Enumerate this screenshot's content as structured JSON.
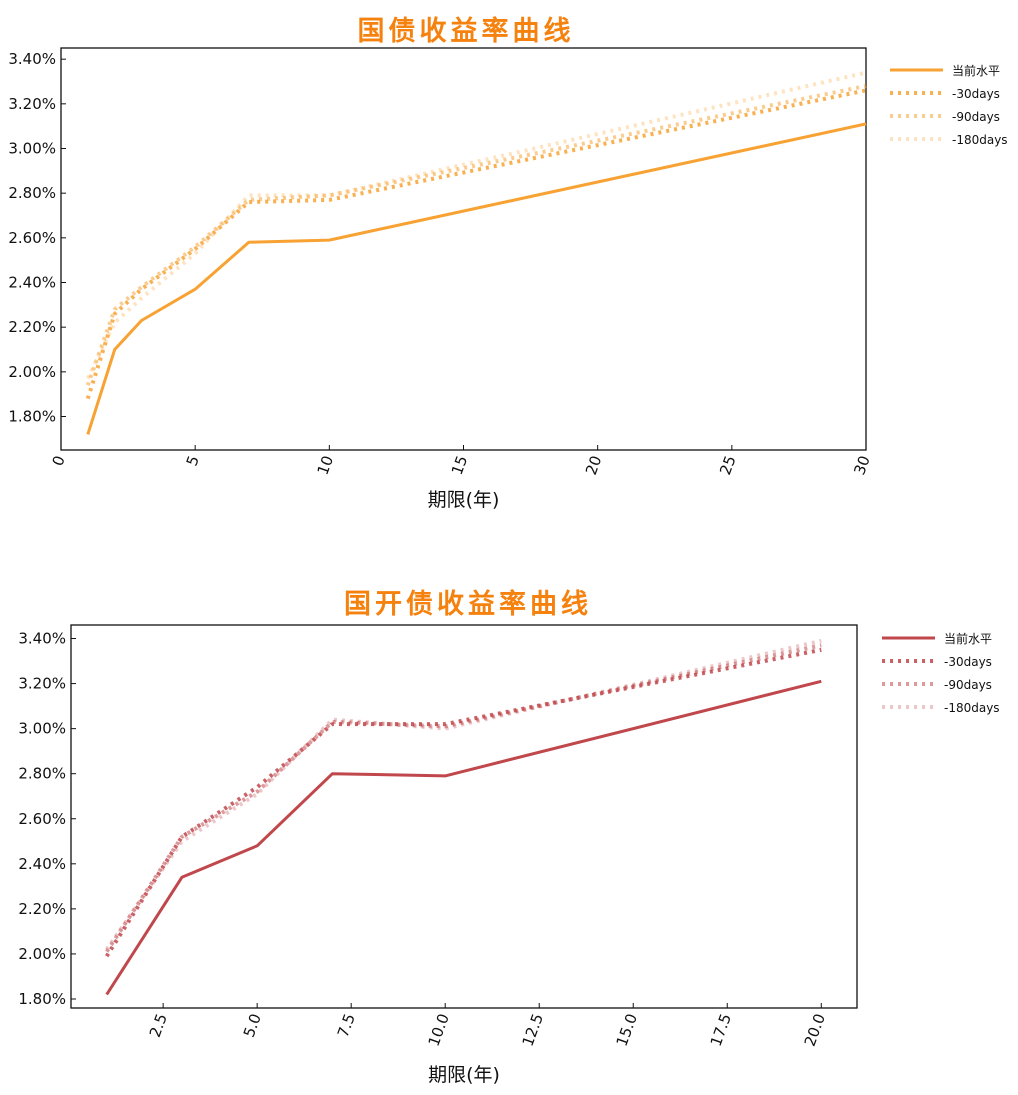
{
  "colors": {
    "chart1": "#f7a233",
    "chart2": "#c0474b",
    "title": "#f5820e"
  },
  "chart_data": [
    {
      "type": "line",
      "title": "国债收益率曲线",
      "xlabel": "期限(年)",
      "ylabel": "",
      "xlim": [
        0,
        30
      ],
      "ylim": [
        1.65,
        3.45
      ],
      "x_ticks": [
        "0",
        "5",
        "10",
        "15",
        "20",
        "25",
        "30"
      ],
      "y_ticks": [
        "1.80%",
        "2.00%",
        "2.20%",
        "2.40%",
        "2.60%",
        "2.80%",
        "3.00%",
        "3.20%",
        "3.40%"
      ],
      "legend_position": "outside-right",
      "grid": false,
      "series": [
        {
          "name": "当前水平",
          "x": [
            1,
            2,
            3,
            5,
            7,
            10,
            30
          ],
          "values": [
            1.72,
            2.1,
            2.23,
            2.37,
            2.58,
            2.59,
            3.11
          ]
        },
        {
          "name": "-30days",
          "x": [
            1,
            2,
            3,
            5,
            7,
            10,
            30
          ],
          "values": [
            1.88,
            2.26,
            2.37,
            2.55,
            2.76,
            2.77,
            3.26
          ]
        },
        {
          "name": "-90days",
          "x": [
            1,
            2,
            3,
            5,
            7,
            10,
            30
          ],
          "values": [
            1.94,
            2.28,
            2.38,
            2.56,
            2.77,
            2.79,
            3.28
          ]
        },
        {
          "name": "-180days",
          "x": [
            1,
            2,
            3,
            5,
            7,
            10,
            30
          ],
          "values": [
            1.97,
            2.22,
            2.33,
            2.53,
            2.79,
            2.79,
            3.34
          ]
        }
      ]
    },
    {
      "type": "line",
      "title": "国开债收益率曲线",
      "xlabel": "期限(年)",
      "ylabel": "",
      "xlim": [
        0.05,
        20.95
      ],
      "ylim": [
        1.76,
        3.46
      ],
      "x_ticks": [
        "2.5",
        "5.0",
        "7.5",
        "10.0",
        "12.5",
        "15.0",
        "17.5",
        "20.0"
      ],
      "y_ticks": [
        "1.80%",
        "2.00%",
        "2.20%",
        "2.40%",
        "2.60%",
        "2.80%",
        "3.00%",
        "3.20%",
        "3.40%"
      ],
      "legend_position": "outside-right",
      "grid": false,
      "series": [
        {
          "name": "当前水平",
          "x": [
            1,
            3,
            5,
            7,
            10,
            20
          ],
          "values": [
            1.82,
            2.34,
            2.48,
            2.8,
            2.79,
            3.21
          ]
        },
        {
          "name": "-30days",
          "x": [
            1,
            3,
            5,
            7,
            10,
            20
          ],
          "values": [
            1.99,
            2.52,
            2.74,
            3.02,
            3.02,
            3.35
          ]
        },
        {
          "name": "-90days",
          "x": [
            1,
            3,
            5,
            7,
            10,
            20
          ],
          "values": [
            2.01,
            2.52,
            2.72,
            3.03,
            3.01,
            3.37
          ]
        },
        {
          "name": "-180days",
          "x": [
            1,
            3,
            5,
            7,
            10,
            20
          ],
          "values": [
            2.02,
            2.5,
            2.71,
            3.04,
            3.0,
            3.39
          ]
        }
      ]
    }
  ]
}
